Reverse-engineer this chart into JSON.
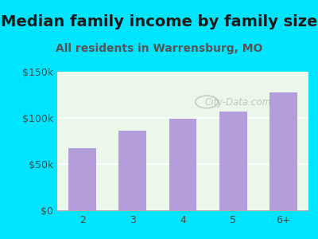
{
  "title": "Median family income by family size",
  "subtitle": "All residents in Warrensburg, MO",
  "categories": [
    "2",
    "3",
    "4",
    "5",
    "6+"
  ],
  "values": [
    67000,
    86000,
    99000,
    107000,
    128000
  ],
  "bar_color": "#b39ddb",
  "title_color": "#1a1a1a",
  "subtitle_color": "#555555",
  "background_outer": "#00e5ff",
  "background_inner": "#eaf7ea",
  "ylim": [
    0,
    150000
  ],
  "yticks": [
    0,
    50000,
    100000,
    150000
  ],
  "watermark": "City-Data.com",
  "title_fontsize": 14,
  "subtitle_fontsize": 10,
  "tick_label_fontsize": 9,
  "axis_label_color": "#4a4a4a"
}
